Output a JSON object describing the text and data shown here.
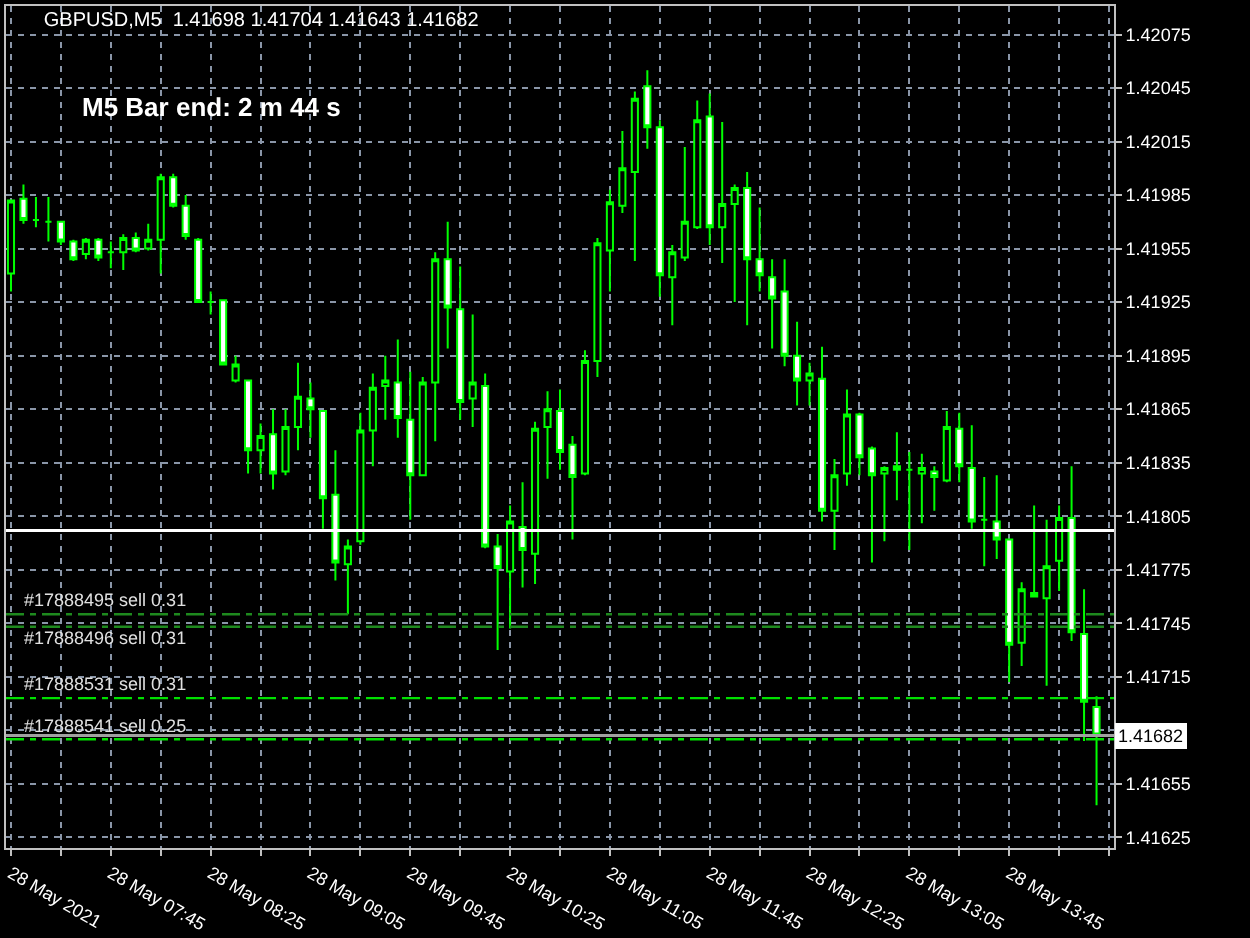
{
  "chart_data": {
    "type": "candlestick",
    "title": "GBPUSD,M5  1.41698 1.41704 1.41643 1.41682",
    "color": "#00ff00",
    "annotations": [
      "M5 Bar end: 2 m 44 s"
    ],
    "x": [
      "2021-05-28T07:05",
      "2021-05-28T07:10",
      "2021-05-28T07:15",
      "2021-05-28T07:20",
      "2021-05-28T07:25",
      "2021-05-28T07:30",
      "2021-05-28T07:35",
      "2021-05-28T07:40",
      "2021-05-28T07:45",
      "2021-05-28T07:50",
      "2021-05-28T07:55",
      "2021-05-28T08:00",
      "2021-05-28T08:05",
      "2021-05-28T08:10",
      "2021-05-28T08:15",
      "2021-05-28T08:20",
      "2021-05-28T08:25",
      "2021-05-28T08:30",
      "2021-05-28T08:35",
      "2021-05-28T08:40",
      "2021-05-28T08:45",
      "2021-05-28T08:50",
      "2021-05-28T08:55",
      "2021-05-28T09:00",
      "2021-05-28T09:05",
      "2021-05-28T09:10",
      "2021-05-28T09:15",
      "2021-05-28T09:20",
      "2021-05-28T09:25",
      "2021-05-28T09:30",
      "2021-05-28T09:35",
      "2021-05-28T09:40",
      "2021-05-28T09:45",
      "2021-05-28T09:50",
      "2021-05-28T09:55",
      "2021-05-28T10:00",
      "2021-05-28T10:05",
      "2021-05-28T10:10",
      "2021-05-28T10:15",
      "2021-05-28T10:20",
      "2021-05-28T10:25",
      "2021-05-28T10:30",
      "2021-05-28T10:35",
      "2021-05-28T10:40",
      "2021-05-28T10:45",
      "2021-05-28T10:50",
      "2021-05-28T10:55",
      "2021-05-28T11:00",
      "2021-05-28T11:05",
      "2021-05-28T11:10",
      "2021-05-28T11:15",
      "2021-05-28T11:20",
      "2021-05-28T11:25",
      "2021-05-28T11:30",
      "2021-05-28T11:35",
      "2021-05-28T11:40",
      "2021-05-28T11:45",
      "2021-05-28T11:50",
      "2021-05-28T11:55",
      "2021-05-28T12:00",
      "2021-05-28T12:05",
      "2021-05-28T12:10",
      "2021-05-28T12:15",
      "2021-05-28T12:20",
      "2021-05-28T12:25",
      "2021-05-28T12:30",
      "2021-05-28T12:35",
      "2021-05-28T12:40",
      "2021-05-28T12:45",
      "2021-05-28T12:50",
      "2021-05-28T12:55",
      "2021-05-28T13:00",
      "2021-05-28T13:05",
      "2021-05-28T13:10",
      "2021-05-28T13:15",
      "2021-05-28T13:20",
      "2021-05-28T13:25",
      "2021-05-28T13:30",
      "2021-05-28T13:35",
      "2021-05-28T13:40",
      "2021-05-28T13:45",
      "2021-05-28T13:50",
      "2021-05-28T13:55",
      "2021-05-28T14:00",
      "2021-05-28T14:05",
      "2021-05-28T14:10",
      "2021-05-28T14:15",
      "2021-05-28T14:20"
    ],
    "ohlc": [
      [
        1.41941,
        1.41982,
        1.41931,
        1.41982
      ],
      [
        1.41983,
        1.41991,
        1.41969,
        1.41971
      ],
      [
        1.41971,
        1.41984,
        1.41967,
        1.41971
      ],
      [
        1.4197,
        1.41984,
        1.41959,
        1.4197
      ],
      [
        1.4197,
        1.4197,
        1.41957,
        1.41959
      ],
      [
        1.41959,
        1.4196,
        1.41948,
        1.41949
      ],
      [
        1.41952,
        1.41961,
        1.41949,
        1.4196
      ],
      [
        1.4196,
        1.41961,
        1.41948,
        1.4195
      ],
      [
        1.41953,
        1.41959,
        1.41944,
        1.41953
      ],
      [
        1.41953,
        1.41963,
        1.41943,
        1.41961
      ],
      [
        1.41961,
        1.41964,
        1.41953,
        1.41954
      ],
      [
        1.41955,
        1.41969,
        1.41954,
        1.4196
      ],
      [
        1.4196,
        1.41997,
        1.41941,
        1.41995
      ],
      [
        1.41995,
        1.41997,
        1.41978,
        1.41979
      ],
      [
        1.41979,
        1.41985,
        1.4196,
        1.41962
      ],
      [
        1.4196,
        1.41961,
        1.41925,
        1.41925
      ],
      [
        1.41925,
        1.41931,
        1.41918,
        1.41925
      ],
      [
        1.41926,
        1.41926,
        1.4189,
        1.4189
      ],
      [
        1.41881,
        1.41895,
        1.4188,
        1.4189
      ],
      [
        1.41881,
        1.41881,
        1.41829,
        1.41842
      ],
      [
        1.41842,
        1.41857,
        1.41829,
        1.4185
      ],
      [
        1.41851,
        1.41865,
        1.4182,
        1.41829
      ],
      [
        1.4183,
        1.41865,
        1.41828,
        1.41855
      ],
      [
        1.41855,
        1.41891,
        1.41842,
        1.41872
      ],
      [
        1.41871,
        1.4188,
        1.41849,
        1.41865
      ],
      [
        1.41864,
        1.41864,
        1.41798,
        1.41815
      ],
      [
        1.41817,
        1.41842,
        1.41769,
        1.41779
      ],
      [
        1.41778,
        1.41792,
        1.4175,
        1.41788
      ],
      [
        1.41791,
        1.41863,
        1.41789,
        1.41853
      ],
      [
        1.41853,
        1.41885,
        1.41833,
        1.41877
      ],
      [
        1.41878,
        1.41895,
        1.41859,
        1.41881
      ],
      [
        1.4188,
        1.41904,
        1.41849,
        1.4186
      ],
      [
        1.41859,
        1.41886,
        1.41803,
        1.41828
      ],
      [
        1.41828,
        1.41883,
        1.41828,
        1.4188
      ],
      [
        1.4188,
        1.41953,
        1.41847,
        1.41949
      ],
      [
        1.41949,
        1.4197,
        1.41899,
        1.41922
      ],
      [
        1.41921,
        1.41945,
        1.41859,
        1.41869
      ],
      [
        1.41871,
        1.41918,
        1.41855,
        1.4188
      ],
      [
        1.41878,
        1.41885,
        1.41787,
        1.41788
      ],
      [
        1.41788,
        1.41795,
        1.4173,
        1.41776
      ],
      [
        1.41774,
        1.41811,
        1.41742,
        1.41802
      ],
      [
        1.41799,
        1.41824,
        1.41765,
        1.41786
      ],
      [
        1.41784,
        1.41858,
        1.41767,
        1.41854
      ],
      [
        1.41855,
        1.41875,
        1.41826,
        1.41865
      ],
      [
        1.41864,
        1.41876,
        1.41831,
        1.41841
      ],
      [
        1.41845,
        1.4185,
        1.41792,
        1.41827
      ],
      [
        1.41829,
        1.41898,
        1.41828,
        1.41892
      ],
      [
        1.41892,
        1.41961,
        1.41883,
        1.41958
      ],
      [
        1.41954,
        1.41988,
        1.41931,
        1.41981
      ],
      [
        1.41979,
        1.42021,
        1.41975,
        1.42
      ],
      [
        1.41998,
        1.42043,
        1.41948,
        1.42039
      ],
      [
        1.42046,
        1.42055,
        1.42011,
        1.42023
      ],
      [
        1.42023,
        1.42027,
        1.41928,
        1.4194
      ],
      [
        1.41939,
        1.41957,
        1.41912,
        1.41953
      ],
      [
        1.4195,
        1.42012,
        1.41948,
        1.4197
      ],
      [
        1.41967,
        1.42038,
        1.41966,
        1.42027
      ],
      [
        1.42029,
        1.42042,
        1.41957,
        1.41967
      ],
      [
        1.41967,
        1.42026,
        1.41947,
        1.4198
      ],
      [
        1.4198,
        1.41991,
        1.41925,
        1.41989
      ],
      [
        1.41989,
        1.41998,
        1.41912,
        1.41949
      ],
      [
        1.41949,
        1.41978,
        1.41931,
        1.4194
      ],
      [
        1.41939,
        1.41949,
        1.41899,
        1.41927
      ],
      [
        1.41931,
        1.41949,
        1.41889,
        1.41895
      ],
      [
        1.41895,
        1.41914,
        1.41867,
        1.41881
      ],
      [
        1.41881,
        1.41891,
        1.41867,
        1.41885
      ],
      [
        1.41882,
        1.419,
        1.41802,
        1.41808
      ],
      [
        1.41808,
        1.41837,
        1.41786,
        1.41828
      ],
      [
        1.41829,
        1.41876,
        1.41822,
        1.41862
      ],
      [
        1.41862,
        1.41863,
        1.41828,
        1.41838
      ],
      [
        1.41843,
        1.41844,
        1.41779,
        1.41828
      ],
      [
        1.41829,
        1.41833,
        1.41791,
        1.41832
      ],
      [
        1.41831,
        1.41852,
        1.41814,
        1.41833
      ],
      [
        1.41831,
        1.41841,
        1.41786,
        1.41831
      ],
      [
        1.41829,
        1.4184,
        1.41801,
        1.41832
      ],
      [
        1.4183,
        1.41833,
        1.41808,
        1.41827
      ],
      [
        1.41825,
        1.41864,
        1.41824,
        1.41855
      ],
      [
        1.41854,
        1.41863,
        1.41824,
        1.41833
      ],
      [
        1.41832,
        1.41856,
        1.41798,
        1.41802
      ],
      [
        1.41803,
        1.41827,
        1.41777,
        1.41803
      ],
      [
        1.41802,
        1.41828,
        1.41781,
        1.41792
      ],
      [
        1.41792,
        1.41792,
        1.41712,
        1.41733
      ],
      [
        1.41734,
        1.41768,
        1.41721,
        1.41764
      ],
      [
        1.41762,
        1.41811,
        1.4176,
        1.4176
      ],
      [
        1.41759,
        1.41803,
        1.4171,
        1.41777
      ],
      [
        1.4178,
        1.41811,
        1.41763,
        1.41804
      ],
      [
        1.41804,
        1.41833,
        1.41735,
        1.4174
      ],
      [
        1.41739,
        1.41764,
        1.41679,
        1.41701
      ],
      [
        1.41698,
        1.41704,
        1.41643,
        1.41682
      ]
    ],
    "xlim": [
      "2021-05-28T07:03",
      "2021-05-28T14:27"
    ],
    "xticks": [
      {
        "value": "2021-05-28T07:05",
        "label": "28 May 2021"
      },
      {
        "value": "2021-05-28T07:25",
        "label": null
      },
      {
        "value": "2021-05-28T07:45",
        "label": "28 May 07:45"
      },
      {
        "value": "2021-05-28T08:05",
        "label": null
      },
      {
        "value": "2021-05-28T08:25",
        "label": "28 May 08:25"
      },
      {
        "value": "2021-05-28T08:45",
        "label": null
      },
      {
        "value": "2021-05-28T09:05",
        "label": "28 May 09:05"
      },
      {
        "value": "2021-05-28T09:25",
        "label": null
      },
      {
        "value": "2021-05-28T09:45",
        "label": "28 May 09:45"
      },
      {
        "value": "2021-05-28T10:05",
        "label": null
      },
      {
        "value": "2021-05-28T10:25",
        "label": "28 May 10:25"
      },
      {
        "value": "2021-05-28T10:45",
        "label": null
      },
      {
        "value": "2021-05-28T11:05",
        "label": "28 May 11:05"
      },
      {
        "value": "2021-05-28T11:25",
        "label": null
      },
      {
        "value": "2021-05-28T11:45",
        "label": "28 May 11:45"
      },
      {
        "value": "2021-05-28T12:05",
        "label": null
      },
      {
        "value": "2021-05-28T12:25",
        "label": "28 May 12:25"
      },
      {
        "value": "2021-05-28T12:45",
        "label": null
      },
      {
        "value": "2021-05-28T13:05",
        "label": "28 May 13:05"
      },
      {
        "value": "2021-05-28T13:25",
        "label": null
      },
      {
        "value": "2021-05-28T13:45",
        "label": "28 May 13:45"
      },
      {
        "value": "2021-05-28T14:05",
        "label": null
      },
      {
        "value": "2021-05-28T14:25",
        "label": null
      }
    ],
    "ylim": [
      1.41619,
      1.42091
    ],
    "yticks": [
      1.41625,
      1.41655,
      {
        "value": 1.41685,
        "label": null
      },
      1.41715,
      1.41745,
      1.41775,
      1.41805,
      1.41835,
      1.41865,
      1.41895,
      1.41925,
      1.41955,
      1.41985,
      1.42015,
      1.42045,
      1.42075
    ],
    "grid": true,
    "ref_lines": [
      {
        "axis": "y",
        "value": 1.41797,
        "label": null,
        "color": "#ffffff",
        "line_style": "solid"
      },
      {
        "axis": "y",
        "value": 1.4175,
        "label": "#17888495 sell 0.31",
        "color": "#1e8a1e",
        "line_style": "dashed"
      },
      {
        "axis": "y",
        "value": 1.41743,
        "label": "#17888496 sell 0.31",
        "color": "#1e8a1e",
        "line_style": "dashed"
      },
      {
        "axis": "y",
        "value": 1.41703,
        "label": "#17888531 sell 0.31",
        "color": "#00e000",
        "line_style": "dashed"
      },
      {
        "axis": "y",
        "value": 1.4168,
        "label": "#17888541 sell 0.25",
        "color": "#00e000",
        "line_style": "dashed"
      },
      {
        "axis": "y",
        "value": 1.41682,
        "label": "1.41682",
        "color": "#a0a0a0",
        "line_style": "solid"
      }
    ]
  }
}
